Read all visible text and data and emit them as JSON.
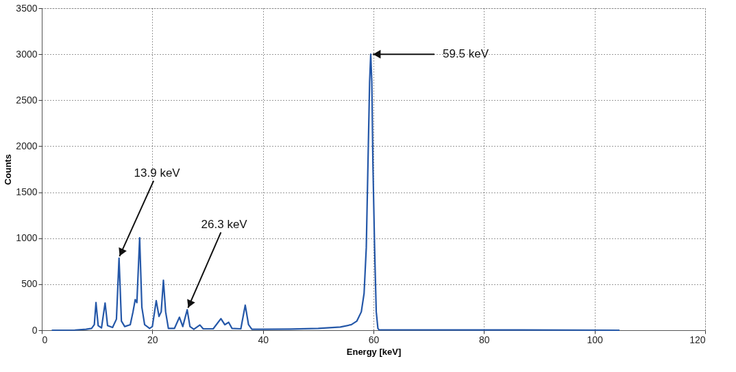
{
  "chart_data": {
    "type": "line",
    "xlabel": "Energy [keV]",
    "ylabel": "Counts",
    "x": [
      1.8,
      6,
      8,
      9,
      9.5,
      9.8,
      10.2,
      10.8,
      11.45,
      11.9,
      12.8,
      13.5,
      13.97,
      14.4,
      15,
      16,
      16.5,
      16.9,
      17.2,
      17.7,
      18.1,
      18.6,
      19.5,
      20,
      20.7,
      21.2,
      21.6,
      22.0,
      22.4,
      22.9,
      24,
      24.9,
      25.5,
      26.3,
      26.8,
      27.5,
      28.6,
      29.2,
      31,
      32.4,
      33.1,
      33.8,
      34.4,
      36,
      36.8,
      37.4,
      38,
      40,
      45,
      50,
      54,
      56,
      57,
      57.8,
      58.3,
      58.7,
      59,
      59.3,
      59.5,
      59.7,
      59.9,
      60.2,
      60.5,
      60.8,
      61,
      80,
      104.5
    ],
    "series": [
      {
        "color": "#2457a8",
        "values": [
          0,
          2,
          10,
          20,
          60,
          300,
          50,
          25,
          296,
          50,
          30,
          120,
          783,
          100,
          40,
          60,
          200,
          333,
          300,
          1005,
          250,
          60,
          20,
          40,
          321,
          150,
          200,
          543,
          200,
          20,
          20,
          141,
          40,
          222,
          40,
          10,
          57,
          15,
          15,
          126,
          60,
          86,
          20,
          15,
          272,
          60,
          10,
          10,
          12,
          20,
          35,
          60,
          100,
          200,
          400,
          900,
          1800,
          2700,
          3000,
          2700,
          1800,
          900,
          200,
          20,
          5,
          3,
          0
        ]
      }
    ],
    "xlim": [
      0,
      120
    ],
    "xticks": [
      0,
      20,
      40,
      60,
      80,
      100,
      120
    ],
    "ylim": [
      0,
      3500
    ],
    "yticks": [
      0,
      500,
      1000,
      1500,
      2000,
      2500,
      3000,
      3500
    ],
    "grid": true,
    "marker": "none",
    "line_style": "solid",
    "annotations": [
      {
        "text": "13.9 keV",
        "x": 13.9,
        "y": 783
      },
      {
        "text": "26.3 keV",
        "x": 26.3,
        "y": 222
      },
      {
        "text": "59.5 keV",
        "x": 59.5,
        "y": 3000
      }
    ]
  }
}
